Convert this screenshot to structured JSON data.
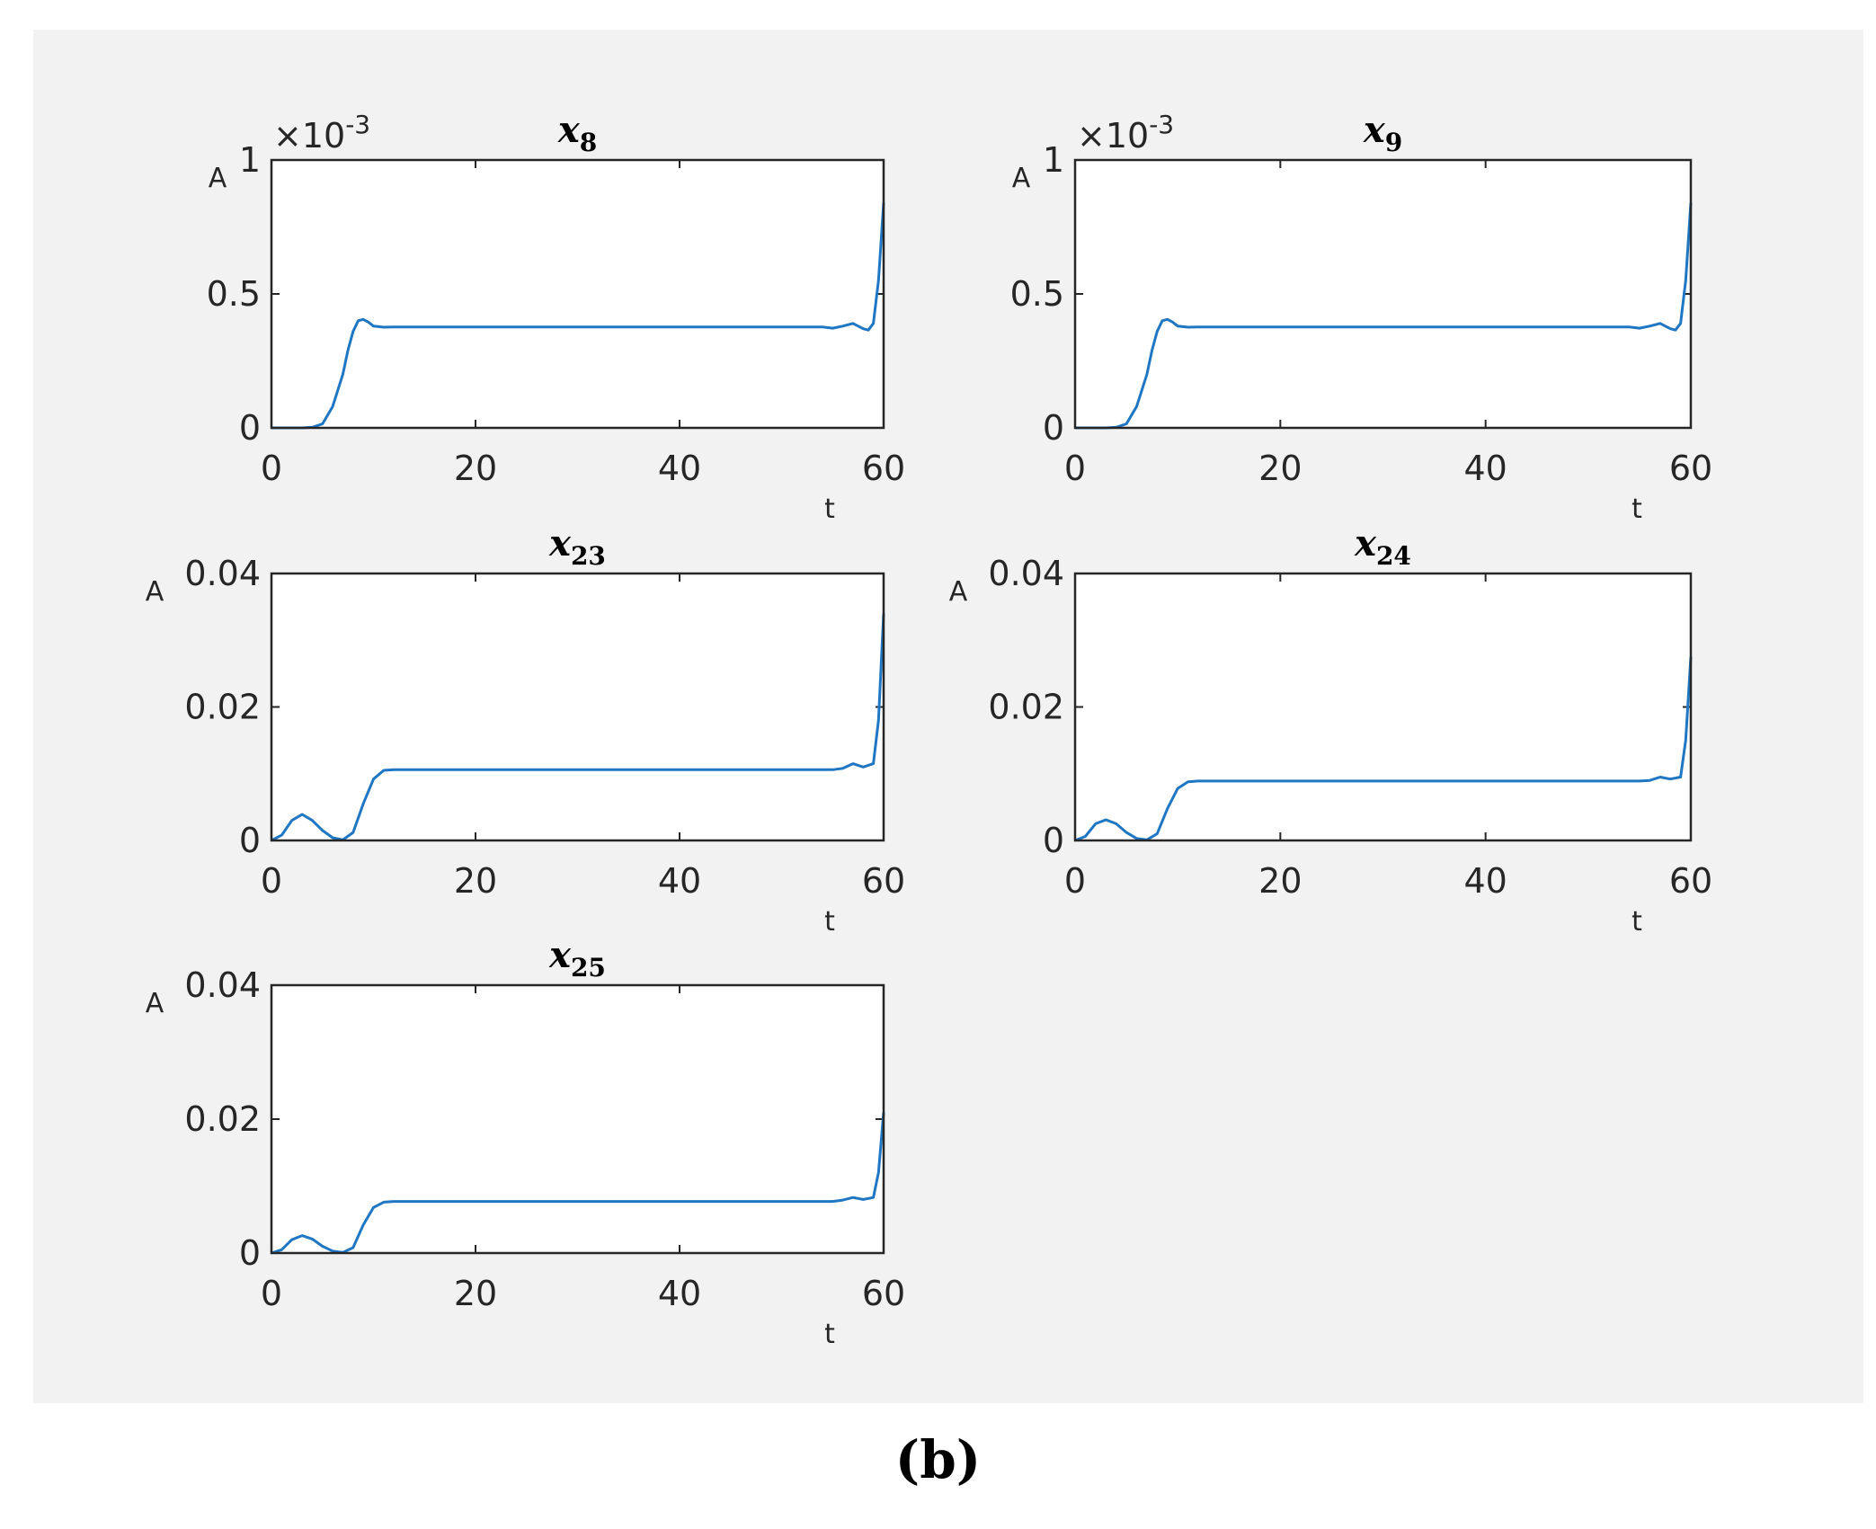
{
  "caption": "(b)",
  "colors": {
    "line": "#1f77c4",
    "axes": "#262626",
    "figure_bg": "#f2f2f2",
    "plot_bg": "#ffffff"
  },
  "chart_data": [
    {
      "type": "line",
      "title": "x8",
      "title_main": "x",
      "title_sub": "8",
      "xlabel": "t",
      "ylabel": "A",
      "xlim": [
        0,
        60
      ],
      "ylim": [
        0,
        0.001
      ],
      "xticks": [
        "0",
        "20",
        "40",
        "60"
      ],
      "yticks": [
        "0",
        "0.5",
        "1"
      ],
      "multiplier_label": "×10",
      "multiplier_exp": "-3",
      "series": [
        {
          "x": [
            0,
            3,
            4,
            5,
            6,
            7,
            7.5,
            8,
            8.5,
            9,
            9.5,
            10,
            11,
            12,
            20,
            40,
            54,
            55,
            56,
            57,
            58,
            58.5,
            59,
            59.5,
            60
          ],
          "y": [
            0,
            0,
            2e-06,
            1.5e-05,
            8e-05,
            0.0002,
            0.00029,
            0.00036,
            0.0004,
            0.000405,
            0.000395,
            0.00038,
            0.000376,
            0.000377,
            0.000377,
            0.000377,
            0.000377,
            0.000372,
            0.00038,
            0.00039,
            0.00037,
            0.000365,
            0.00039,
            0.00055,
            0.00084
          ]
        }
      ]
    },
    {
      "type": "line",
      "title": "x9",
      "title_main": "x",
      "title_sub": "9",
      "xlabel": "t",
      "ylabel": "A",
      "xlim": [
        0,
        60
      ],
      "ylim": [
        0,
        0.001
      ],
      "xticks": [
        "0",
        "20",
        "40",
        "60"
      ],
      "yticks": [
        "0",
        "0.5",
        "1"
      ],
      "multiplier_label": "×10",
      "multiplier_exp": "-3",
      "series": [
        {
          "x": [
            0,
            3,
            4,
            5,
            6,
            7,
            7.5,
            8,
            8.5,
            9,
            9.5,
            10,
            11,
            12,
            20,
            40,
            54,
            55,
            56,
            57,
            58,
            58.5,
            59,
            59.5,
            60
          ],
          "y": [
            0,
            0,
            2e-06,
            1.5e-05,
            8e-05,
            0.0002,
            0.00029,
            0.00036,
            0.0004,
            0.000405,
            0.000395,
            0.00038,
            0.000376,
            0.000377,
            0.000377,
            0.000377,
            0.000377,
            0.000372,
            0.00038,
            0.00039,
            0.00037,
            0.000365,
            0.00039,
            0.00055,
            0.00084
          ]
        }
      ]
    },
    {
      "type": "line",
      "title": "x23",
      "title_main": "x",
      "title_sub": "23",
      "xlabel": "t",
      "ylabel": "A",
      "xlim": [
        0,
        60
      ],
      "ylim": [
        0,
        0.04
      ],
      "xticks": [
        "0",
        "20",
        "40",
        "60"
      ],
      "yticks": [
        "0",
        "0.02",
        "0.04"
      ],
      "series": [
        {
          "x": [
            0,
            1,
            2,
            3,
            4,
            5,
            6,
            7,
            8,
            9,
            10,
            11,
            12,
            20,
            40,
            55,
            56,
            57,
            58,
            59,
            59.5,
            60
          ],
          "y": [
            0,
            0.0008,
            0.003,
            0.0039,
            0.003,
            0.0015,
            0.0004,
            0.0001,
            0.0012,
            0.0055,
            0.0092,
            0.0105,
            0.0106,
            0.0106,
            0.0106,
            0.0106,
            0.0108,
            0.0115,
            0.011,
            0.0115,
            0.018,
            0.034
          ]
        }
      ]
    },
    {
      "type": "line",
      "title": "x24",
      "title_main": "x",
      "title_sub": "24",
      "xlabel": "t",
      "ylabel": "A",
      "xlim": [
        0,
        60
      ],
      "ylim": [
        0,
        0.04
      ],
      "xticks": [
        "0",
        "20",
        "40",
        "60"
      ],
      "yticks": [
        "0",
        "0.02",
        "0.04"
      ],
      "series": [
        {
          "x": [
            0,
            1,
            2,
            3,
            4,
            5,
            6,
            7,
            8,
            9,
            10,
            11,
            12,
            20,
            40,
            55,
            56,
            57,
            58,
            59,
            59.5,
            60
          ],
          "y": [
            0,
            0.0006,
            0.0025,
            0.0031,
            0.0025,
            0.0012,
            0.0003,
            0.0001,
            0.001,
            0.0048,
            0.0078,
            0.0088,
            0.0089,
            0.0089,
            0.0089,
            0.0089,
            0.009,
            0.0095,
            0.0092,
            0.0095,
            0.015,
            0.0275
          ]
        }
      ]
    },
    {
      "type": "line",
      "title": "x25",
      "title_main": "x",
      "title_sub": "25",
      "xlabel": "t",
      "ylabel": "A",
      "xlim": [
        0,
        60
      ],
      "ylim": [
        0,
        0.04
      ],
      "xticks": [
        "0",
        "20",
        "40",
        "60"
      ],
      "yticks": [
        "0",
        "0.02",
        "0.04"
      ],
      "series": [
        {
          "x": [
            0,
            1,
            2,
            3,
            4,
            5,
            6,
            7,
            8,
            9,
            10,
            11,
            12,
            20,
            40,
            55,
            56,
            57,
            58,
            59,
            59.5,
            60
          ],
          "y": [
            0,
            0.0005,
            0.002,
            0.0026,
            0.0021,
            0.001,
            0.0003,
            0.0001,
            0.0008,
            0.0042,
            0.0068,
            0.0076,
            0.0077,
            0.0077,
            0.0077,
            0.0077,
            0.0079,
            0.0083,
            0.008,
            0.0083,
            0.012,
            0.021
          ]
        }
      ]
    }
  ]
}
